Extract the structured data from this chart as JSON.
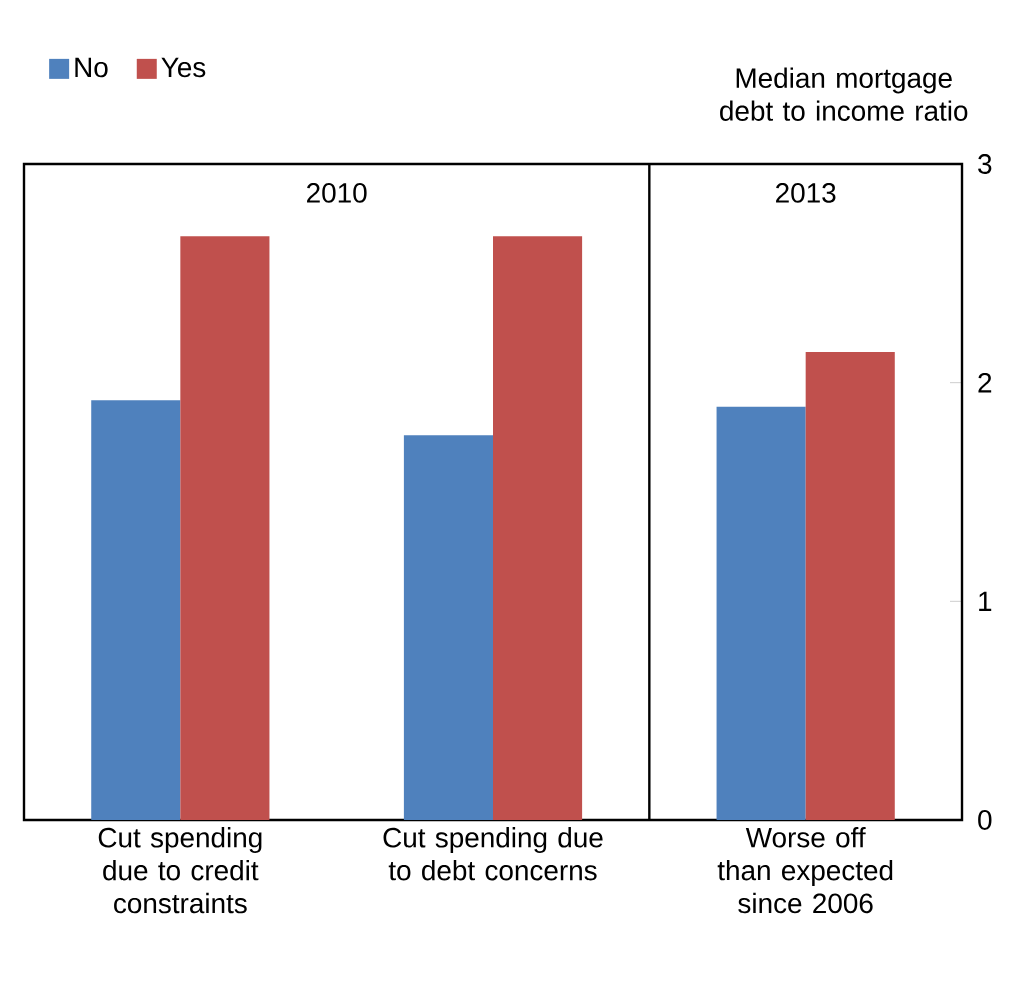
{
  "chart_data": {
    "type": "bar",
    "categories": [
      "Cut spending due to credit constraints",
      "Cut spending due to debt concerns",
      "Worse off than expected since 2006"
    ],
    "series": [
      {
        "name": "No",
        "color": "#4f81bd",
        "values": [
          1.92,
          1.76,
          1.89
        ]
      },
      {
        "name": "Yes",
        "color": "#c0504d",
        "values": [
          2.67,
          2.67,
          2.14
        ]
      }
    ],
    "ylabel": "Median mortgage debt to income ratio",
    "ylim": [
      0,
      3
    ],
    "yticks": [
      0,
      1,
      2,
      3
    ],
    "annotations": [
      "2010",
      "2013"
    ],
    "legend": "top left"
  }
}
